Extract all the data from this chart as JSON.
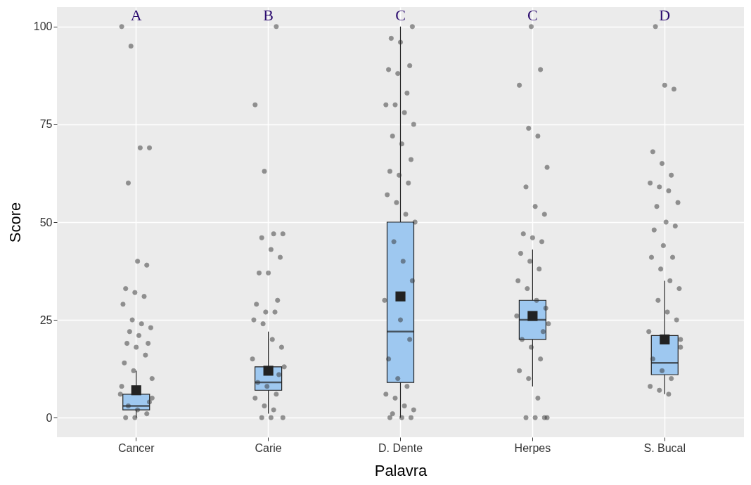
{
  "chart_data": {
    "type": "box",
    "xlabel": "Palavra",
    "ylabel": "Score",
    "categories": [
      "Cancer",
      "Carie",
      "D. Dente",
      "Herpes",
      "S. Bucal"
    ],
    "ylim": [
      -5,
      105
    ],
    "yticks": [
      0,
      25,
      50,
      75,
      100
    ],
    "grid": true,
    "series": [
      {
        "color": "#9ec8f0",
        "boxes": [
          {
            "low": 0,
            "q1": 2,
            "median": 3,
            "q3": 6,
            "high": 12,
            "mean": 7
          },
          {
            "low": 1,
            "q1": 7,
            "median": 9,
            "q3": 13,
            "high": 22,
            "mean": 12
          },
          {
            "low": 0,
            "q1": 9,
            "median": 22,
            "q3": 50,
            "high": 100,
            "mean": 31
          },
          {
            "low": 8,
            "q1": 20,
            "median": 25,
            "q3": 30,
            "high": 43,
            "mean": 26
          },
          {
            "low": 6,
            "q1": 11,
            "median": 14,
            "q3": 21,
            "high": 35,
            "mean": 20
          }
        ]
      },
      {
        "type": "scatter",
        "color": "#333333",
        "x": [
          "Cancer",
          "Cancer",
          "Cancer",
          "Cancer",
          "Cancer",
          "Cancer",
          "Cancer",
          "Cancer",
          "Cancer",
          "Cancer",
          "Cancer",
          "Cancer",
          "Cancer",
          "Cancer",
          "Cancer",
          "Cancer",
          "Cancer",
          "Cancer",
          "Cancer",
          "Cancer",
          "Cancer",
          "Cancer",
          "Cancer",
          "Cancer",
          "Cancer",
          "Cancer",
          "Cancer",
          "Cancer",
          "Cancer",
          "Cancer",
          "Cancer",
          "Cancer",
          "Carie",
          "Carie",
          "Carie",
          "Carie",
          "Carie",
          "Carie",
          "Carie",
          "Carie",
          "Carie",
          "Carie",
          "Carie",
          "Carie",
          "Carie",
          "Carie",
          "Carie",
          "Carie",
          "Carie",
          "Carie",
          "Carie",
          "Carie",
          "Carie",
          "Carie",
          "Carie",
          "Carie",
          "Carie",
          "Carie",
          "Carie",
          "Carie",
          "Carie",
          "Carie",
          "D. Dente",
          "D. Dente",
          "D. Dente",
          "D. Dente",
          "D. Dente",
          "D. Dente",
          "D. Dente",
          "D. Dente",
          "D. Dente",
          "D. Dente",
          "D. Dente",
          "D. Dente",
          "D. Dente",
          "D. Dente",
          "D. Dente",
          "D. Dente",
          "D. Dente",
          "D. Dente",
          "D. Dente",
          "D. Dente",
          "D. Dente",
          "D. Dente",
          "D. Dente",
          "D. Dente",
          "D. Dente",
          "D. Dente",
          "D. Dente",
          "D. Dente",
          "D. Dente",
          "D. Dente",
          "D. Dente",
          "D. Dente",
          "D. Dente",
          "D. Dente",
          "D. Dente",
          "D. Dente",
          "D. Dente",
          "D. Dente",
          "Herpes",
          "Herpes",
          "Herpes",
          "Herpes",
          "Herpes",
          "Herpes",
          "Herpes",
          "Herpes",
          "Herpes",
          "Herpes",
          "Herpes",
          "Herpes",
          "Herpes",
          "Herpes",
          "Herpes",
          "Herpes",
          "Herpes",
          "Herpes",
          "Herpes",
          "Herpes",
          "Herpes",
          "Herpes",
          "Herpes",
          "Herpes",
          "Herpes",
          "Herpes",
          "Herpes",
          "Herpes",
          "Herpes",
          "Herpes",
          "Herpes",
          "Herpes",
          "S. Bucal",
          "S. Bucal",
          "S. Bucal",
          "S. Bucal",
          "S. Bucal",
          "S. Bucal",
          "S. Bucal",
          "S. Bucal",
          "S. Bucal",
          "S. Bucal",
          "S. Bucal",
          "S. Bucal",
          "S. Bucal",
          "S. Bucal",
          "S. Bucal",
          "S. Bucal",
          "S. Bucal",
          "S. Bucal",
          "S. Bucal",
          "S. Bucal",
          "S. Bucal",
          "S. Bucal",
          "S. Bucal",
          "S. Bucal",
          "S. Bucal",
          "S. Bucal",
          "S. Bucal",
          "S. Bucal",
          "S. Bucal",
          "S. Bucal",
          "S. Bucal",
          "S. Bucal"
        ],
        "values": [
          100,
          95,
          69,
          69,
          60,
          40,
          39,
          33,
          32,
          31,
          29,
          25,
          24,
          23,
          22,
          21,
          19,
          19,
          18,
          16,
          14,
          12,
          10,
          8,
          6,
          5,
          4,
          3,
          2,
          1,
          0,
          0,
          100,
          80,
          63,
          47,
          47,
          46,
          43,
          41,
          37,
          37,
          30,
          29,
          27,
          27,
          25,
          24,
          20,
          18,
          15,
          13,
          11,
          9,
          8,
          6,
          5,
          3,
          2,
          0,
          0,
          0,
          100,
          97,
          96,
          90,
          89,
          88,
          83,
          80,
          80,
          78,
          75,
          72,
          70,
          66,
          63,
          62,
          60,
          57,
          55,
          52,
          50,
          45,
          40,
          35,
          30,
          25,
          20,
          15,
          10,
          8,
          6,
          5,
          3,
          2,
          1,
          0,
          0,
          0,
          100,
          89,
          85,
          74,
          72,
          64,
          59,
          54,
          52,
          47,
          46,
          45,
          42,
          40,
          38,
          35,
          33,
          30,
          28,
          26,
          24,
          22,
          20,
          18,
          15,
          12,
          10,
          5,
          0,
          0,
          0,
          0,
          100,
          85,
          84,
          68,
          65,
          62,
          60,
          59,
          58,
          55,
          54,
          50,
          49,
          48,
          44,
          41,
          41,
          38,
          35,
          33,
          30,
          27,
          25,
          22,
          20,
          18,
          15,
          12,
          10,
          8,
          7,
          6
        ]
      }
    ],
    "annotations": [
      "A",
      "B",
      "C",
      "C",
      "D"
    ]
  }
}
